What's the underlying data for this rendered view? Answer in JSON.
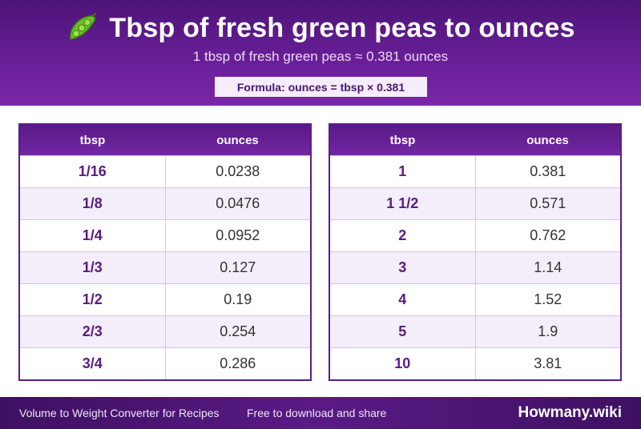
{
  "header": {
    "title": "Tbsp of fresh green peas to ounces",
    "subtitle": "1 tbsp of fresh green peas ≈ 0.381 ounces",
    "formula": "Formula: ounces = tbsp × 0.381",
    "icon": "pea-pod-icon"
  },
  "tables": {
    "left": {
      "headers": [
        "tbsp",
        "ounces"
      ],
      "rows": [
        [
          "1/16",
          "0.0238"
        ],
        [
          "1/8",
          "0.0476"
        ],
        [
          "1/4",
          "0.0952"
        ],
        [
          "1/3",
          "0.127"
        ],
        [
          "1/2",
          "0.19"
        ],
        [
          "2/3",
          "0.254"
        ],
        [
          "3/4",
          "0.286"
        ]
      ]
    },
    "right": {
      "headers": [
        "tbsp",
        "ounces"
      ],
      "rows": [
        [
          "1",
          "0.381"
        ],
        [
          "1 1/2",
          "0.571"
        ],
        [
          "2",
          "0.762"
        ],
        [
          "3",
          "1.14"
        ],
        [
          "4",
          "1.52"
        ],
        [
          "5",
          "1.9"
        ],
        [
          "10",
          "3.81"
        ]
      ]
    }
  },
  "footer": {
    "left_text": "Volume to Weight Converter for Recipes",
    "mid_text": "Free to download and share",
    "brand": "Howmany.wiki"
  },
  "colors": {
    "brand_purple": "#5a1a85",
    "row_alt": "#f4eefa"
  }
}
